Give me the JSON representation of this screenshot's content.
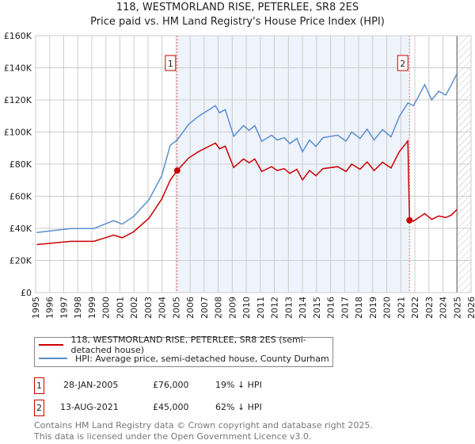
{
  "chart_data": {
    "type": "line",
    "title": "118, WESTMORLAND RISE, PETERLEE, SR8 2ES",
    "subtitle": "Price paid vs. HM Land Registry's House Price Index (HPI)",
    "xlabel": "",
    "ylabel": "",
    "xlim": [
      1995,
      2026
    ],
    "ylim": [
      0,
      160000
    ],
    "x_ticks": [
      1995,
      1996,
      1997,
      1998,
      1999,
      2000,
      2001,
      2002,
      2003,
      2004,
      2005,
      2006,
      2007,
      2008,
      2009,
      2010,
      2011,
      2012,
      2013,
      2014,
      2015,
      2016,
      2017,
      2018,
      2019,
      2020,
      2021,
      2022,
      2023,
      2024,
      2025,
      2026
    ],
    "y_ticks": [
      0,
      20000,
      40000,
      60000,
      80000,
      100000,
      120000,
      140000,
      160000
    ],
    "y_tick_labels": [
      "£0",
      "£20K",
      "£40K",
      "£60K",
      "£80K",
      "£100K",
      "£120K",
      "£140K",
      "£160K"
    ],
    "grid": true,
    "shaded_region": [
      2005.08,
      2021.62
    ],
    "hatched_region": [
      2025.0,
      2026
    ],
    "series": [
      {
        "name": "118, WESTMORLAND RISE, PETERLEE, SR8 2ES (semi-detached house)",
        "color": "#cc0000",
        "x": [
          1995.08,
          1997.5,
          1999.15,
          2000.55,
          2001.16,
          2001.96,
          2003.07,
          2003.98,
          2004.58,
          2005.08,
          2005.9,
          2006.6,
          2007.8,
          2008.1,
          2008.5,
          2009.1,
          2009.8,
          2010.2,
          2010.6,
          2011.1,
          2011.8,
          2012.2,
          2012.7,
          2013.1,
          2013.6,
          2014.0,
          2014.5,
          2014.95,
          2015.45,
          2016.5,
          2017.1,
          2017.5,
          2018.1,
          2018.6,
          2019.1,
          2019.7,
          2020.3,
          2020.9,
          2021.5,
          2021.62,
          2021.9,
          2022.7,
          2023.2,
          2023.7,
          2024.2,
          2024.6,
          2025.0
        ],
        "values": [
          29900,
          31900,
          31900,
          35800,
          34100,
          37800,
          46300,
          58200,
          70000,
          76000,
          83800,
          87800,
          93100,
          89600,
          91200,
          77900,
          83200,
          80800,
          83200,
          75400,
          78400,
          76000,
          77200,
          74200,
          76800,
          70100,
          76000,
          72800,
          77200,
          78400,
          75400,
          80000,
          76800,
          81400,
          76000,
          81200,
          77600,
          87800,
          94400,
          45000,
          44500,
          49200,
          45600,
          47700,
          46700,
          48300,
          51800
        ]
      },
      {
        "name": "HPI: Average price, semi-detached house, County Durham",
        "color": "#5b8fd0",
        "x": [
          1995.08,
          1997.5,
          1999.15,
          2000.55,
          2001.16,
          2001.96,
          2003.07,
          2003.98,
          2004.58,
          2005.08,
          2005.9,
          2006.6,
          2007.8,
          2008.1,
          2008.5,
          2009.1,
          2009.8,
          2010.2,
          2010.6,
          2011.1,
          2011.8,
          2012.2,
          2012.7,
          2013.1,
          2013.6,
          2014.0,
          2014.5,
          2014.95,
          2015.45,
          2016.5,
          2017.1,
          2017.5,
          2018.1,
          2018.6,
          2019.1,
          2019.7,
          2020.3,
          2020.9,
          2021.5,
          2021.9,
          2022.7,
          2023.2,
          2023.7,
          2024.2,
          2024.6,
          2025.0
        ],
        "values": [
          37400,
          39900,
          39900,
          44800,
          42600,
          47300,
          57900,
          72800,
          91700,
          95000,
          104800,
          109800,
          116400,
          112000,
          114000,
          97400,
          104000,
          101000,
          104000,
          94200,
          98000,
          95000,
          96500,
          92800,
          96000,
          87600,
          95000,
          91000,
          96500,
          98000,
          94300,
          100000,
          96000,
          101800,
          95000,
          101500,
          97000,
          109800,
          118000,
          116400,
          129500,
          120000,
          125400,
          123000,
          129500,
          136400
        ]
      }
    ],
    "annotations": [
      {
        "label": "1",
        "x": 2005.08,
        "y": 76000
      },
      {
        "label": "2",
        "x": 2021.62,
        "y": 45000
      }
    ]
  },
  "legend": {
    "property": "118, WESTMORLAND RISE, PETERLEE, SR8 2ES (semi-detached house)",
    "hpi": "HPI: Average price, semi-detached house, County Durham"
  },
  "sales": [
    {
      "num": "1",
      "date": "28-JAN-2005",
      "price": "£76,000",
      "diff": "19% ↓ HPI"
    },
    {
      "num": "2",
      "date": "13-AUG-2021",
      "price": "£45,000",
      "diff": "62% ↓ HPI"
    }
  ],
  "footer": {
    "line1": "Contains HM Land Registry data © Crown copyright and database right 2025.",
    "line2": "This data is licensed under the Open Government Licence v3.0."
  }
}
